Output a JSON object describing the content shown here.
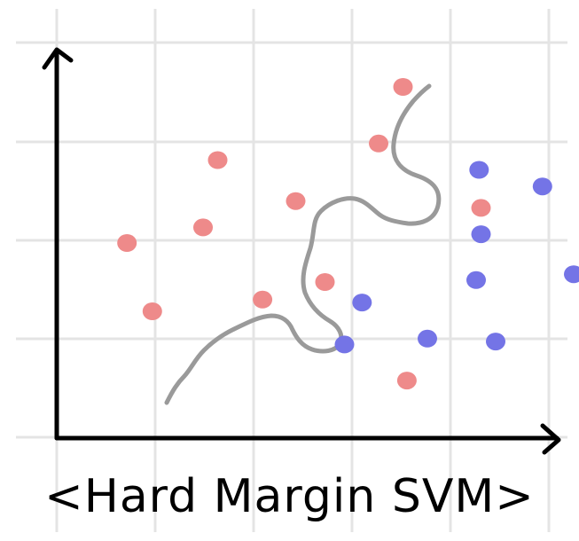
{
  "caption": "<Hard Margin SVM>",
  "colors": {
    "grid": "#e4e4e4",
    "axis": "#000000",
    "class_a": "#ee8a8a",
    "class_b": "#7474e6",
    "boundary": "#9a9a9a"
  },
  "chart_data": {
    "type": "scatter",
    "title": "<Hard Margin SVM>",
    "xlabel": "",
    "ylabel": "",
    "grid": true,
    "series": [
      {
        "color": "#ee8a8a",
        "points": [
          [
            3.55,
            3.6
          ],
          [
            1.65,
            2.85
          ],
          [
            0.72,
            2.0
          ],
          [
            2.75,
            1.6
          ],
          [
            3.3,
            3.02
          ],
          [
            2.45,
            2.43
          ],
          [
            1.5,
            2.16
          ],
          [
            2.11,
            1.42
          ],
          [
            0.98,
            1.3
          ],
          [
            3.59,
            0.59
          ],
          [
            4.35,
            2.36
          ]
        ]
      },
      {
        "color": "#7474e6",
        "points": [
          [
            4.33,
            2.75
          ],
          [
            4.98,
            2.58
          ],
          [
            4.35,
            2.09
          ],
          [
            3.13,
            1.39
          ],
          [
            5.3,
            1.68
          ],
          [
            4.3,
            1.62
          ],
          [
            2.95,
            0.96
          ],
          [
            3.8,
            1.02
          ],
          [
            4.5,
            0.99
          ]
        ]
      }
    ]
  }
}
